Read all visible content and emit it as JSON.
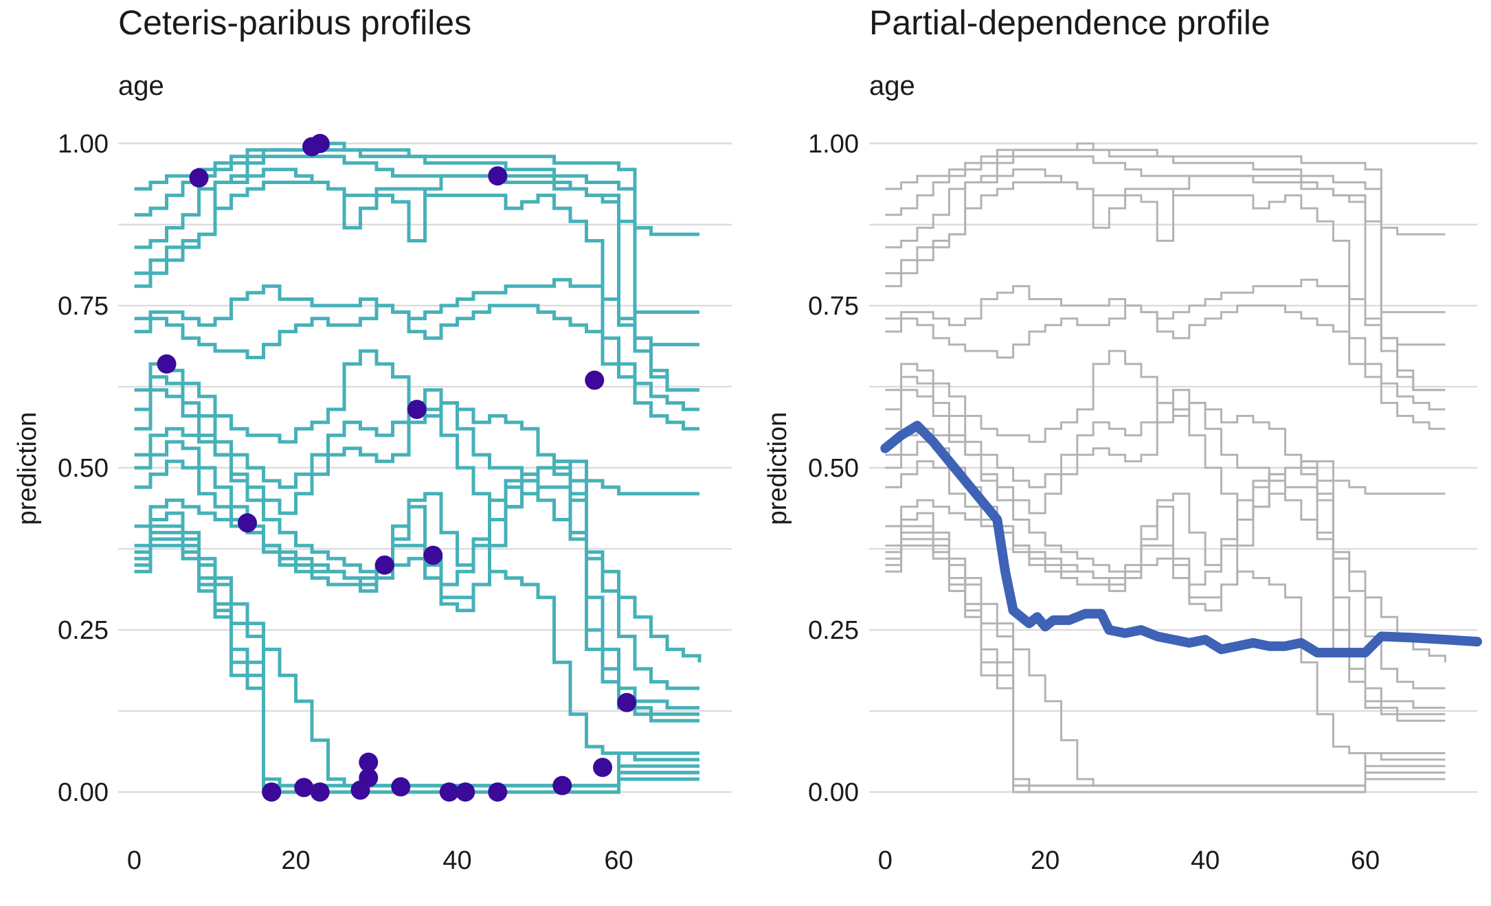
{
  "colors": {
    "cp_line": "#46b1b8",
    "cp_point": "#3b0a9a",
    "background_line": "#b3b3b3",
    "pd_line": "#3d62b6",
    "grid": "#dcdcdc"
  },
  "chart_data": [
    {
      "type": "line",
      "title": "Ceteris-paribus profiles",
      "subtitle": "age",
      "xlabel": "",
      "ylabel": "prediction",
      "xlim": [
        -2,
        74
      ],
      "ylim": [
        -0.02,
        1.02
      ],
      "xticks": [
        "0",
        "20",
        "40",
        "60"
      ],
      "yticks": [
        "0.00",
        "0.25",
        "0.50",
        "0.75",
        "1.00"
      ],
      "grid": true,
      "legend": "none",
      "x": [
        0,
        2,
        4,
        6,
        8,
        10,
        12,
        14,
        16,
        18,
        20,
        22,
        24,
        26,
        28,
        30,
        32,
        34,
        36,
        38,
        40,
        42,
        44,
        46,
        48,
        50,
        52,
        54,
        56,
        58,
        60,
        62,
        64,
        66,
        68,
        70
      ],
      "series": [
        {
          "values": [
            0.93,
            0.94,
            0.95,
            0.95,
            0.95,
            0.96,
            0.97,
            0.98,
            0.99,
            0.99,
            0.99,
            0.99,
            1.0,
            0.99,
            0.99,
            0.99,
            0.99,
            0.98,
            0.98,
            0.98,
            0.98,
            0.98,
            0.98,
            0.98,
            0.98,
            0.98,
            0.97,
            0.97,
            0.97,
            0.97,
            0.96,
            0.87,
            0.86,
            0.86,
            0.86,
            0.86
          ]
        },
        {
          "values": [
            0.89,
            0.9,
            0.92,
            0.94,
            0.96,
            0.97,
            0.98,
            0.99,
            0.99,
            0.99,
            0.99,
            0.99,
            0.99,
            0.99,
            0.98,
            0.98,
            0.98,
            0.98,
            0.97,
            0.97,
            0.97,
            0.97,
            0.97,
            0.96,
            0.96,
            0.96,
            0.95,
            0.95,
            0.94,
            0.94,
            0.93,
            0.74,
            0.74,
            0.74,
            0.74,
            0.74
          ]
        },
        {
          "values": [
            0.84,
            0.85,
            0.87,
            0.89,
            0.93,
            0.94,
            0.94,
            0.97,
            0.98,
            0.98,
            0.98,
            0.98,
            0.98,
            0.97,
            0.97,
            0.96,
            0.95,
            0.95,
            0.95,
            0.95,
            0.95,
            0.95,
            0.95,
            0.94,
            0.94,
            0.94,
            0.93,
            0.93,
            0.92,
            0.92,
            0.72,
            0.7,
            0.69,
            0.69,
            0.69,
            0.69
          ]
        },
        {
          "values": [
            0.8,
            0.82,
            0.84,
            0.85,
            0.86,
            0.94,
            0.95,
            0.95,
            0.96,
            0.96,
            0.95,
            0.94,
            0.93,
            0.92,
            0.92,
            0.92,
            0.91,
            0.85,
            0.93,
            0.95,
            0.95,
            0.95,
            0.95,
            0.95,
            0.95,
            0.95,
            0.94,
            0.93,
            0.92,
            0.91,
            0.88,
            0.68,
            0.64,
            0.62,
            0.62,
            0.62
          ]
        },
        {
          "values": [
            0.78,
            0.8,
            0.82,
            0.84,
            0.86,
            0.9,
            0.92,
            0.93,
            0.94,
            0.94,
            0.94,
            0.94,
            0.93,
            0.87,
            0.9,
            0.93,
            0.93,
            0.93,
            0.92,
            0.92,
            0.92,
            0.92,
            0.92,
            0.9,
            0.91,
            0.92,
            0.9,
            0.88,
            0.85,
            0.66,
            0.64,
            0.6,
            0.58,
            0.57,
            0.56,
            0.56
          ]
        },
        {
          "values": [
            0.73,
            0.74,
            0.74,
            0.73,
            0.72,
            0.73,
            0.76,
            0.77,
            0.78,
            0.76,
            0.76,
            0.75,
            0.75,
            0.75,
            0.76,
            0.75,
            0.74,
            0.73,
            0.74,
            0.75,
            0.76,
            0.77,
            0.77,
            0.78,
            0.78,
            0.78,
            0.79,
            0.78,
            0.78,
            0.76,
            0.73,
            0.7,
            0.65,
            0.62,
            0.62,
            0.62
          ]
        },
        {
          "values": [
            0.71,
            0.73,
            0.72,
            0.7,
            0.69,
            0.68,
            0.68,
            0.67,
            0.69,
            0.71,
            0.72,
            0.73,
            0.72,
            0.72,
            0.73,
            0.75,
            0.74,
            0.71,
            0.7,
            0.72,
            0.73,
            0.74,
            0.75,
            0.75,
            0.75,
            0.74,
            0.73,
            0.72,
            0.71,
            0.7,
            0.66,
            0.63,
            0.61,
            0.6,
            0.59,
            0.59
          ]
        },
        {
          "values": [
            0.62,
            0.66,
            0.65,
            0.63,
            0.61,
            0.58,
            0.56,
            0.55,
            0.55,
            0.54,
            0.56,
            0.57,
            0.59,
            0.66,
            0.68,
            0.66,
            0.64,
            0.6,
            0.58,
            0.6,
            0.59,
            0.57,
            0.58,
            0.57,
            0.56,
            0.52,
            0.49,
            0.48,
            0.48,
            0.47,
            0.46,
            0.46,
            0.46,
            0.46,
            0.46,
            0.46
          ]
        },
        {
          "values": [
            0.59,
            0.64,
            0.63,
            0.6,
            0.58,
            0.54,
            0.52,
            0.5,
            0.48,
            0.47,
            0.49,
            0.52,
            0.55,
            0.57,
            0.56,
            0.55,
            0.57,
            0.6,
            0.62,
            0.6,
            0.56,
            0.52,
            0.5,
            0.5,
            0.48,
            0.45,
            0.42,
            0.39,
            0.37,
            0.34,
            0.3,
            0.27,
            0.24,
            0.22,
            0.21,
            0.2
          ]
        },
        {
          "values": [
            0.56,
            0.62,
            0.61,
            0.58,
            0.55,
            0.52,
            0.49,
            0.47,
            0.45,
            0.43,
            0.46,
            0.49,
            0.52,
            0.53,
            0.52,
            0.51,
            0.52,
            0.57,
            0.59,
            0.55,
            0.5,
            0.46,
            0.42,
            0.44,
            0.46,
            0.47,
            0.47,
            0.46,
            0.36,
            0.31,
            0.24,
            0.19,
            0.17,
            0.16,
            0.16,
            0.16
          ]
        },
        {
          "values": [
            0.52,
            0.55,
            0.56,
            0.55,
            0.54,
            0.52,
            0.48,
            0.45,
            0.42,
            0.4,
            0.38,
            0.37,
            0.36,
            0.35,
            0.34,
            0.34,
            0.39,
            0.45,
            0.46,
            0.4,
            0.35,
            0.38,
            0.42,
            0.47,
            0.49,
            0.5,
            0.51,
            0.51,
            0.3,
            0.22,
            0.16,
            0.14,
            0.14,
            0.13,
            0.13,
            0.13
          ]
        },
        {
          "values": [
            0.5,
            0.52,
            0.54,
            0.53,
            0.5,
            0.47,
            0.44,
            0.41,
            0.38,
            0.37,
            0.36,
            0.35,
            0.34,
            0.33,
            0.32,
            0.35,
            0.41,
            0.44,
            0.36,
            0.32,
            0.34,
            0.39,
            0.45,
            0.48,
            0.49,
            0.5,
            0.51,
            0.45,
            0.25,
            0.19,
            0.14,
            0.13,
            0.12,
            0.12,
            0.12,
            0.12
          ]
        },
        {
          "values": [
            0.47,
            0.49,
            0.51,
            0.5,
            0.46,
            0.44,
            0.42,
            0.4,
            0.37,
            0.35,
            0.34,
            0.33,
            0.32,
            0.32,
            0.31,
            0.33,
            0.38,
            0.38,
            0.33,
            0.29,
            0.28,
            0.32,
            0.38,
            0.44,
            0.48,
            0.5,
            0.5,
            0.4,
            0.22,
            0.17,
            0.13,
            0.12,
            0.11,
            0.11,
            0.11,
            0.11
          ]
        },
        {
          "values": [
            0.41,
            0.44,
            0.45,
            0.44,
            0.43,
            0.42,
            0.41,
            0.4,
            0.38,
            0.36,
            0.35,
            0.34,
            0.34,
            0.33,
            0.33,
            0.33,
            0.35,
            0.36,
            0.35,
            0.3,
            0.3,
            0.32,
            0.34,
            0.33,
            0.32,
            0.3,
            0.2,
            0.12,
            0.07,
            0.06,
            0.06,
            0.06,
            0.06,
            0.06,
            0.06,
            0.06
          ]
        },
        {
          "values": [
            0.38,
            0.42,
            0.43,
            0.4,
            0.36,
            0.33,
            0.29,
            0.26,
            0.22,
            0.18,
            0.14,
            0.08,
            0.02,
            0.01,
            0.01,
            0.01,
            0.01,
            0.01,
            0.01,
            0.01,
            0.01,
            0.01,
            0.01,
            0.01,
            0.01,
            0.01,
            0.01,
            0.01,
            0.01,
            0.01,
            0.06,
            0.05,
            0.05,
            0.05,
            0.05,
            0.05
          ]
        },
        {
          "values": [
            0.37,
            0.41,
            0.41,
            0.39,
            0.35,
            0.32,
            0.26,
            0.24,
            0.02,
            0.01,
            0.01,
            0.01,
            0.01,
            0.01,
            0.01,
            0.01,
            0.01,
            0.01,
            0.01,
            0.01,
            0.01,
            0.01,
            0.01,
            0.01,
            0.01,
            0.01,
            0.01,
            0.01,
            0.01,
            0.01,
            0.04,
            0.04,
            0.04,
            0.04,
            0.04,
            0.04
          ]
        },
        {
          "values": [
            0.36,
            0.4,
            0.4,
            0.38,
            0.33,
            0.29,
            0.22,
            0.2,
            0.01,
            0.01,
            0.01,
            0.01,
            0.01,
            0.01,
            0.01,
            0.01,
            0.01,
            0.01,
            0.01,
            0.01,
            0.01,
            0.01,
            0.01,
            0.01,
            0.01,
            0.01,
            0.01,
            0.01,
            0.01,
            0.01,
            0.03,
            0.03,
            0.03,
            0.03,
            0.03,
            0.03
          ]
        },
        {
          "values": [
            0.35,
            0.39,
            0.39,
            0.37,
            0.32,
            0.28,
            0.2,
            0.18,
            0.01,
            0.0,
            0.0,
            0.0,
            0.0,
            0.0,
            0.0,
            0.0,
            0.0,
            0.0,
            0.0,
            0.0,
            0.0,
            0.0,
            0.0,
            0.0,
            0.0,
            0.0,
            0.0,
            0.0,
            0.0,
            0.0,
            0.03,
            0.03,
            0.03,
            0.03,
            0.03,
            0.03
          ]
        },
        {
          "values": [
            0.34,
            0.38,
            0.38,
            0.36,
            0.31,
            0.27,
            0.18,
            0.16,
            0.0,
            0.0,
            0.0,
            0.0,
            0.0,
            0.0,
            0.0,
            0.0,
            0.0,
            0.0,
            0.0,
            0.0,
            0.0,
            0.0,
            0.0,
            0.0,
            0.0,
            0.0,
            0.0,
            0.0,
            0.0,
            0.0,
            0.02,
            0.02,
            0.02,
            0.02,
            0.02,
            0.02
          ]
        }
      ],
      "points": [
        {
          "x": 4,
          "y": 0.66
        },
        {
          "x": 8,
          "y": 0.947
        },
        {
          "x": 14,
          "y": 0.415
        },
        {
          "x": 17,
          "y": 0.0
        },
        {
          "x": 21,
          "y": 0.007
        },
        {
          "x": 22,
          "y": 0.995
        },
        {
          "x": 23,
          "y": 1.0
        },
        {
          "x": 23,
          "y": 0.0
        },
        {
          "x": 28,
          "y": 0.003
        },
        {
          "x": 29,
          "y": 0.022
        },
        {
          "x": 29,
          "y": 0.046
        },
        {
          "x": 31,
          "y": 0.35
        },
        {
          "x": 33,
          "y": 0.008
        },
        {
          "x": 35,
          "y": 0.59
        },
        {
          "x": 37,
          "y": 0.365
        },
        {
          "x": 39,
          "y": 0.0
        },
        {
          "x": 41,
          "y": 0.0
        },
        {
          "x": 45,
          "y": 0.95
        },
        {
          "x": 45,
          "y": 0.0
        },
        {
          "x": 53,
          "y": 0.01
        },
        {
          "x": 57,
          "y": 0.635
        },
        {
          "x": 58,
          "y": 0.038
        },
        {
          "x": 61,
          "y": 0.138
        }
      ]
    },
    {
      "type": "line",
      "title": "Partial-dependence profile",
      "subtitle": "age",
      "xlabel": "",
      "ylabel": "prediction",
      "xlim": [
        -2,
        74
      ],
      "ylim": [
        -0.02,
        1.02
      ],
      "xticks": [
        "0",
        "20",
        "40",
        "60"
      ],
      "yticks": [
        "0.00",
        "0.25",
        "0.50",
        "0.75",
        "1.00"
      ],
      "grid": true,
      "legend": "none",
      "pd_x": [
        0,
        2,
        4,
        6,
        8,
        10,
        12,
        14,
        15,
        16,
        18,
        19,
        20,
        21,
        23,
        25,
        27,
        28,
        30,
        32,
        34,
        36,
        38,
        40,
        42,
        44,
        46,
        48,
        50,
        52,
        54,
        56,
        58,
        60,
        62,
        66,
        70,
        74
      ],
      "pd_values": [
        0.53,
        0.55,
        0.565,
        0.54,
        0.51,
        0.48,
        0.45,
        0.42,
        0.34,
        0.28,
        0.26,
        0.27,
        0.255,
        0.265,
        0.265,
        0.275,
        0.275,
        0.25,
        0.245,
        0.25,
        0.24,
        0.235,
        0.23,
        0.235,
        0.22,
        0.225,
        0.23,
        0.225,
        0.225,
        0.23,
        0.215,
        0.215,
        0.215,
        0.215,
        0.24,
        0.238,
        0.235,
        0.232
      ]
    }
  ]
}
